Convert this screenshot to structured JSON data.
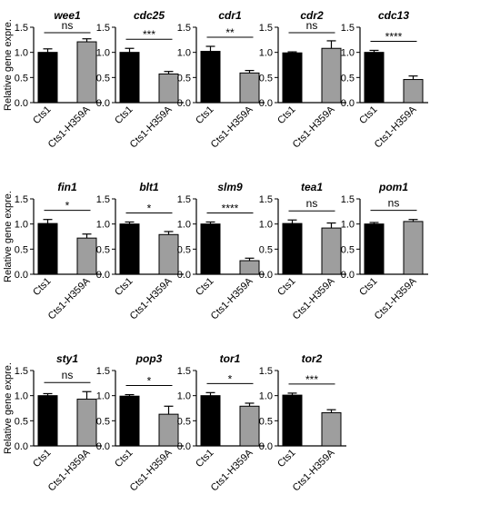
{
  "chart_data": {
    "type": "bar",
    "categories": [
      "Cts1",
      "Cts1-H359A"
    ],
    "ylabel": "Relative gene expre.",
    "ylim": [
      0,
      1.5
    ],
    "yticks": [
      "0.0",
      "0.5",
      "1.0",
      "1.5"
    ],
    "colors": [
      "#000000",
      "#9e9e9e"
    ],
    "panels": [
      {
        "title": "wee1",
        "values": [
          1.0,
          1.21
        ],
        "errors": [
          0.07,
          0.06
        ],
        "sig": "ns"
      },
      {
        "title": "cdc25",
        "values": [
          1.0,
          0.57
        ],
        "errors": [
          0.08,
          0.05
        ],
        "sig": "***"
      },
      {
        "title": "cdr1",
        "values": [
          1.02,
          0.59
        ],
        "errors": [
          0.1,
          0.05
        ],
        "sig": "**"
      },
      {
        "title": "cdr2",
        "values": [
          0.99,
          1.08
        ],
        "errors": [
          0.02,
          0.15
        ],
        "sig": "ns"
      },
      {
        "title": "cdc13",
        "values": [
          1.0,
          0.46
        ],
        "errors": [
          0.04,
          0.07
        ],
        "sig": "****"
      },
      {
        "title": "fin1",
        "values": [
          1.01,
          0.72
        ],
        "errors": [
          0.08,
          0.08
        ],
        "sig": "*"
      },
      {
        "title": "blt1",
        "values": [
          1.0,
          0.79
        ],
        "errors": [
          0.04,
          0.06
        ],
        "sig": "*"
      },
      {
        "title": "slm9",
        "values": [
          1.0,
          0.27
        ],
        "errors": [
          0.04,
          0.05
        ],
        "sig": "****"
      },
      {
        "title": "tea1",
        "values": [
          1.01,
          0.92
        ],
        "errors": [
          0.07,
          0.1
        ],
        "sig": "ns"
      },
      {
        "title": "pom1",
        "values": [
          1.0,
          1.05
        ],
        "errors": [
          0.03,
          0.04
        ],
        "sig": "ns"
      },
      {
        "title": "sty1",
        "values": [
          1.0,
          0.93
        ],
        "errors": [
          0.04,
          0.15
        ],
        "sig": "ns"
      },
      {
        "title": "pop3",
        "values": [
          0.99,
          0.63
        ],
        "errors": [
          0.03,
          0.16
        ],
        "sig": "*"
      },
      {
        "title": "tor1",
        "values": [
          1.0,
          0.79
        ],
        "errors": [
          0.06,
          0.06
        ],
        "sig": "*"
      },
      {
        "title": "tor2",
        "values": [
          1.01,
          0.66
        ],
        "errors": [
          0.04,
          0.06
        ],
        "sig": "***"
      }
    ]
  }
}
